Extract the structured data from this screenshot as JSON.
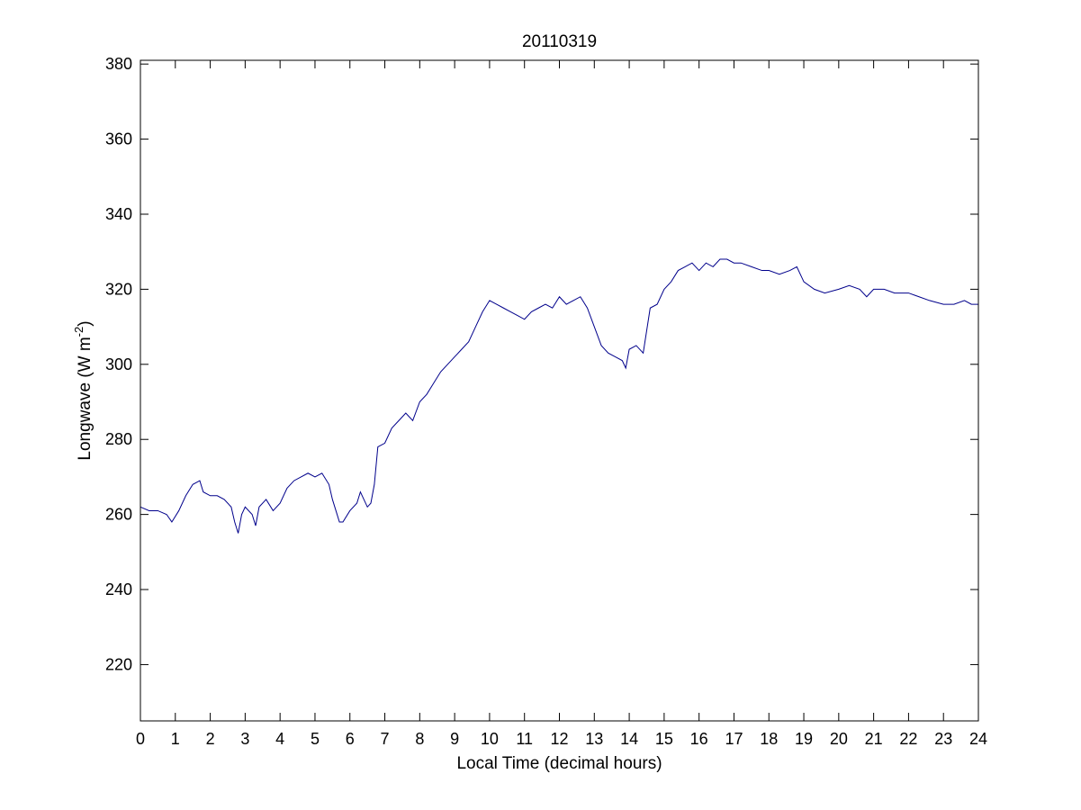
{
  "chart_data": {
    "type": "line",
    "title": "20110319",
    "xlabel": "Local Time (decimal hours)",
    "ylabel": {
      "text": "Longwave (W m",
      "superscript": "-2",
      "suffix": ")"
    },
    "xlim": [
      0,
      24
    ],
    "ylim": [
      205,
      381
    ],
    "xticks": [
      0,
      1,
      2,
      3,
      4,
      5,
      6,
      7,
      8,
      9,
      10,
      11,
      12,
      13,
      14,
      15,
      16,
      17,
      18,
      19,
      20,
      21,
      22,
      23,
      24
    ],
    "yticks": [
      220,
      240,
      260,
      280,
      300,
      320,
      340,
      360,
      380
    ],
    "grid": false,
    "line_color": "#00008b",
    "series": [
      {
        "x": [
          0.0,
          0.25,
          0.5,
          0.75,
          0.9,
          1.1,
          1.3,
          1.5,
          1.7,
          1.8,
          2.0,
          2.2,
          2.4,
          2.6,
          2.7,
          2.8,
          2.9,
          3.0,
          3.2,
          3.3,
          3.4,
          3.6,
          3.8,
          4.0,
          4.2,
          4.4,
          4.6,
          4.8,
          5.0,
          5.2,
          5.4,
          5.5,
          5.6,
          5.7,
          5.8,
          6.0,
          6.2,
          6.3,
          6.4,
          6.5,
          6.6,
          6.7,
          6.8,
          7.0,
          7.2,
          7.4,
          7.6,
          7.8,
          8.0,
          8.2,
          8.4,
          8.6,
          8.8,
          9.0,
          9.2,
          9.4,
          9.6,
          9.8,
          10.0,
          10.2,
          10.4,
          10.6,
          10.8,
          11.0,
          11.2,
          11.4,
          11.6,
          11.8,
          12.0,
          12.2,
          12.4,
          12.6,
          12.8,
          13.0,
          13.2,
          13.4,
          13.6,
          13.8,
          13.9,
          14.0,
          14.2,
          14.4,
          14.6,
          14.8,
          15.0,
          15.2,
          15.4,
          15.6,
          15.8,
          16.0,
          16.2,
          16.4,
          16.6,
          16.8,
          17.0,
          17.2,
          17.5,
          17.8,
          18.0,
          18.3,
          18.6,
          18.8,
          19.0,
          19.3,
          19.6,
          20.0,
          20.3,
          20.6,
          20.8,
          21.0,
          21.3,
          21.6,
          22.0,
          22.3,
          22.6,
          23.0,
          23.3,
          23.6,
          23.8,
          24.0
        ],
        "y": [
          262,
          261,
          261,
          260,
          258,
          261,
          265,
          268,
          269,
          266,
          265,
          265,
          264,
          262,
          258,
          255,
          260,
          262,
          260,
          257,
          262,
          264,
          261,
          263,
          267,
          269,
          270,
          271,
          270,
          271,
          268,
          264,
          261,
          258,
          258,
          261,
          263,
          266,
          264,
          262,
          263,
          268,
          278,
          279,
          283,
          285,
          287,
          285,
          290,
          292,
          295,
          298,
          300,
          302,
          304,
          306,
          310,
          314,
          317,
          316,
          315,
          314,
          313,
          312,
          314,
          315,
          316,
          315,
          318,
          316,
          317,
          318,
          315,
          310,
          305,
          303,
          302,
          301,
          299,
          304,
          305,
          303,
          315,
          316,
          320,
          322,
          325,
          326,
          327,
          325,
          327,
          326,
          328,
          328,
          327,
          327,
          326,
          325,
          325,
          324,
          325,
          326,
          322,
          320,
          319,
          320,
          321,
          320,
          318,
          320,
          320,
          319,
          319,
          318,
          317,
          316,
          316,
          317,
          316,
          316
        ]
      }
    ]
  }
}
